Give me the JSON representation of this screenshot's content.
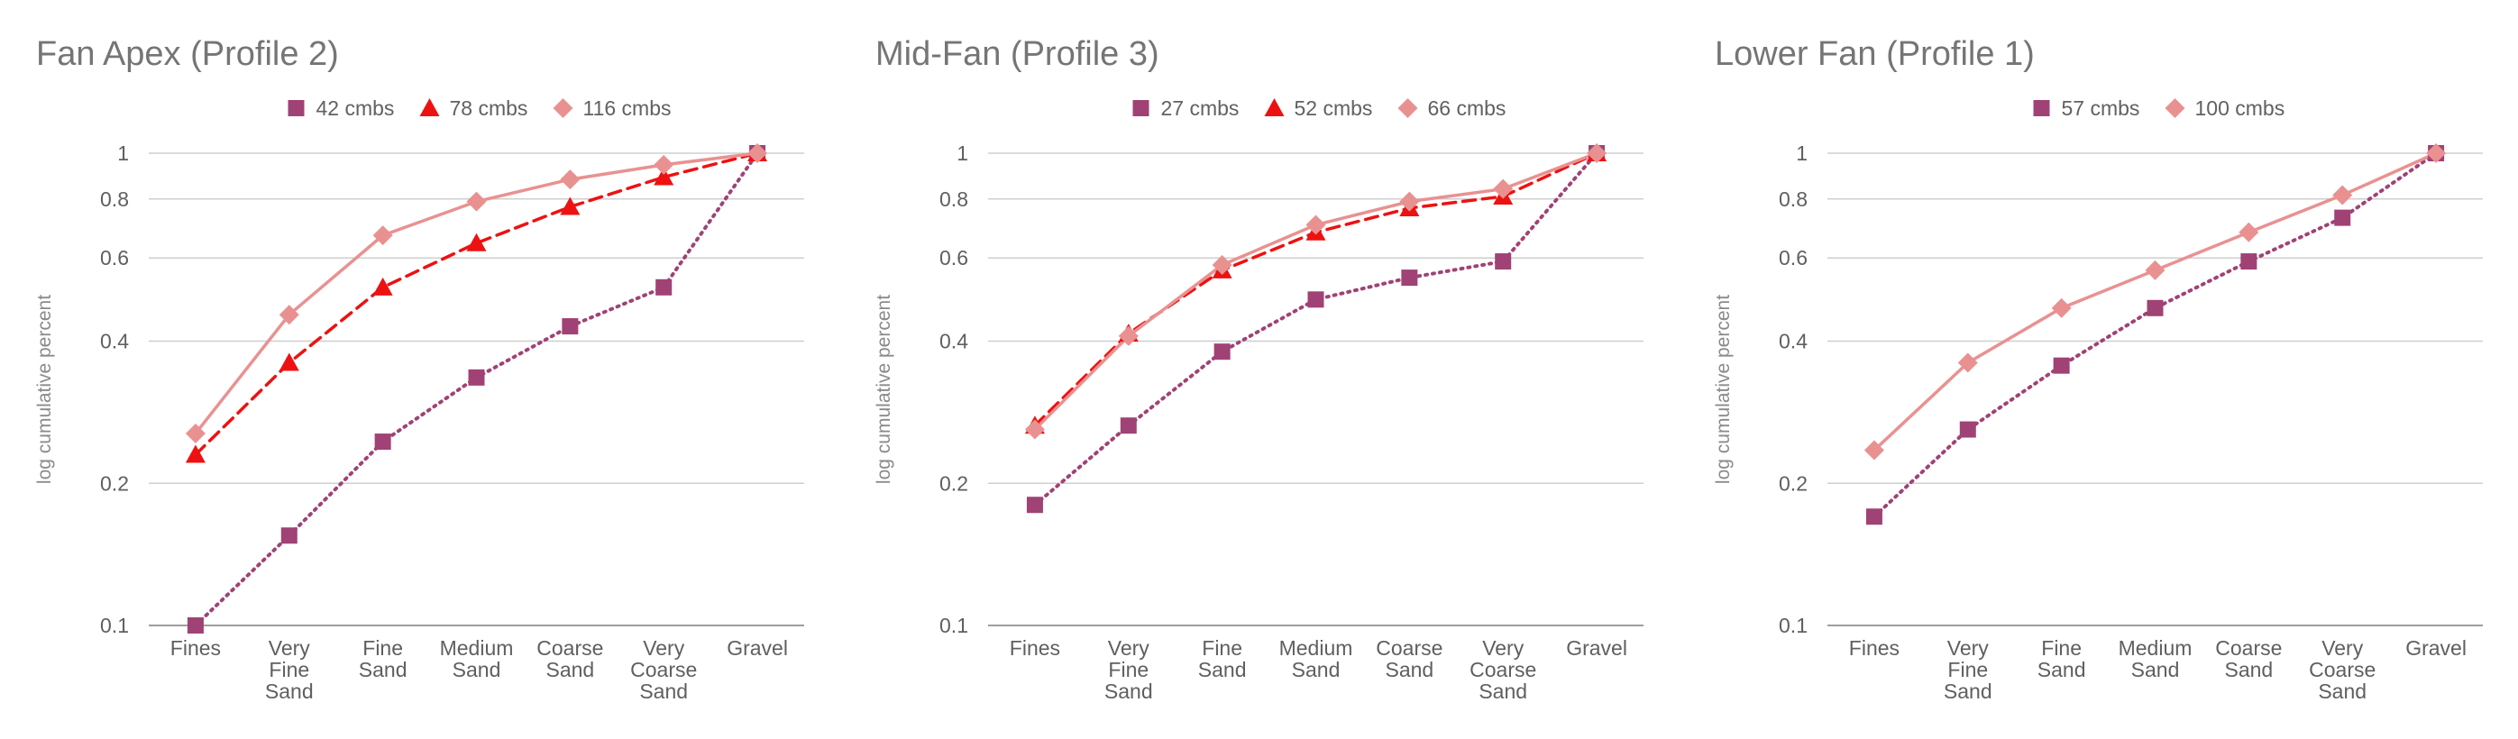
{
  "chart_data": [
    {
      "type": "line",
      "title": "Fan Apex (Profile 2)",
      "ylabel": "log cumulative percent",
      "xlabel": "",
      "yscale": "log",
      "ylim": [
        0.1,
        1
      ],
      "yticks": [
        "0.1",
        "0.2",
        "0.4",
        "0.6",
        "0.8",
        "1"
      ],
      "categories": [
        [
          "Fines"
        ],
        [
          "Very",
          "Fine",
          "Sand"
        ],
        [
          "Fine",
          "Sand"
        ],
        [
          "Medium",
          "Sand"
        ],
        [
          "Coarse",
          "Sand"
        ],
        [
          "Very",
          "Coarse",
          "Sand"
        ],
        [
          "Gravel"
        ]
      ],
      "legend_position": "top",
      "grid": true,
      "series": [
        {
          "name": "42 cmbs",
          "values": [
            0.1,
            0.155,
            0.245,
            0.335,
            0.43,
            0.52,
            1.0
          ],
          "color": "#a04275",
          "marker": "square",
          "line": "dotted"
        },
        {
          "name": "78 cmbs",
          "values": [
            0.23,
            0.36,
            0.52,
            0.645,
            0.77,
            0.89,
            1.0
          ],
          "color": "#ee1111",
          "marker": "triangle",
          "line": "dashed"
        },
        {
          "name": "116 cmbs",
          "values": [
            0.255,
            0.455,
            0.67,
            0.79,
            0.88,
            0.945,
            1.0
          ],
          "color": "#e99191",
          "marker": "diamond",
          "line": "solid"
        }
      ]
    },
    {
      "type": "line",
      "title": "Mid-Fan (Profile 3)",
      "ylabel": "log cumulative percent",
      "xlabel": "",
      "yscale": "log",
      "ylim": [
        0.1,
        1
      ],
      "yticks": [
        "0.1",
        "0.2",
        "0.4",
        "0.6",
        "0.8",
        "1"
      ],
      "categories": [
        [
          "Fines"
        ],
        [
          "Very",
          "Fine",
          "Sand"
        ],
        [
          "Fine",
          "Sand"
        ],
        [
          "Medium",
          "Sand"
        ],
        [
          "Coarse",
          "Sand"
        ],
        [
          "Very",
          "Coarse",
          "Sand"
        ],
        [
          "Gravel"
        ]
      ],
      "legend_position": "top",
      "grid": true,
      "series": [
        {
          "name": "27 cmbs",
          "values": [
            0.18,
            0.265,
            0.38,
            0.49,
            0.545,
            0.59,
            1.0
          ],
          "color": "#a04275",
          "marker": "square",
          "line": "dotted"
        },
        {
          "name": "52 cmbs",
          "values": [
            0.265,
            0.415,
            0.565,
            0.68,
            0.765,
            0.81,
            1.0
          ],
          "color": "#ee1111",
          "marker": "triangle",
          "line": "dashed"
        },
        {
          "name": "66 cmbs",
          "values": [
            0.26,
            0.41,
            0.58,
            0.705,
            0.79,
            0.84,
            1.0
          ],
          "color": "#e99191",
          "marker": "diamond",
          "line": "solid"
        }
      ]
    },
    {
      "type": "line",
      "title": "Lower Fan (Profile 1)",
      "ylabel": "log cumulative percent",
      "xlabel": "",
      "yscale": "log",
      "ylim": [
        0.1,
        1
      ],
      "yticks": [
        "0.1",
        "0.2",
        "0.4",
        "0.6",
        "0.8",
        "1"
      ],
      "categories": [
        [
          "Fines"
        ],
        [
          "Very",
          "Fine",
          "Sand"
        ],
        [
          "Fine",
          "Sand"
        ],
        [
          "Medium",
          "Sand"
        ],
        [
          "Coarse",
          "Sand"
        ],
        [
          "Very",
          "Coarse",
          "Sand"
        ],
        [
          "Gravel"
        ]
      ],
      "legend_position": "top",
      "grid": true,
      "series": [
        {
          "name": "57 cmbs",
          "values": [
            0.17,
            0.26,
            0.355,
            0.47,
            0.59,
            0.73,
            1.0
          ],
          "color": "#a04275",
          "marker": "square",
          "line": "dotted"
        },
        {
          "name": "100 cmbs",
          "values": [
            0.235,
            0.36,
            0.47,
            0.565,
            0.68,
            0.815,
            1.0
          ],
          "color": "#e99191",
          "marker": "diamond",
          "line": "solid"
        }
      ]
    }
  ]
}
